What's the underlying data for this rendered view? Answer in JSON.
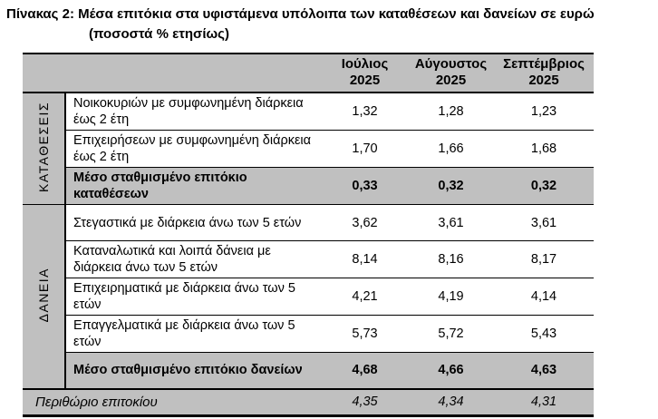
{
  "title": {
    "line1": "Πίνακας 2: Μέσα επιτόκια στα υφιστάμενα υπόλοιπα των καταθέσεων και δανείων σε ευρώ",
    "line2": "(ποσοστά % ετησίως)"
  },
  "colors": {
    "header_bg": "#c0c0c0",
    "highlight_bg": "#c0c0c0",
    "border": "#000000",
    "text": "#000000"
  },
  "table": {
    "columns": [
      "Ιούλιος\n2025",
      "Αύγουστος\n2025",
      "Σεπτέμβριος\n2025"
    ],
    "sections": [
      {
        "label": "ΚΑΤΑΘΕΣΕΙΣ",
        "rows": [
          {
            "label": "Νοικοκυριών με συμφωνημένη διάρκεια έως 2 έτη",
            "values": [
              "1,32",
              "1,28",
              "1,23"
            ]
          },
          {
            "label": "Επιχειρήσεων με συμφωνημένη διάρκεια έως 2 έτη",
            "values": [
              "1,70",
              "1,66",
              "1,68"
            ]
          },
          {
            "label": "Μέσο σταθμισμένο επιτόκιο καταθέσεων",
            "values": [
              "0,33",
              "0,32",
              "0,32"
            ]
          }
        ]
      },
      {
        "label": "ΔΑΝΕΙΑ",
        "rows": [
          {
            "label": "Στεγαστικά με διάρκεια άνω των 5 ετών",
            "values": [
              "3,62",
              "3,61",
              "3,61"
            ]
          },
          {
            "label": "Καταναλωτικά και λοιπά δάνεια με διάρκεια άνω των 5 ετών",
            "values": [
              "8,14",
              "8,16",
              "8,17"
            ]
          },
          {
            "label": "Επιχειρηματικά με διάρκεια άνω των 5 ετών",
            "values": [
              "4,21",
              "4,19",
              "4,14"
            ]
          },
          {
            "label": "Επαγγελματικά με διάρκεια άνω των 5 ετών",
            "values": [
              "5,73",
              "5,72",
              "5,43"
            ]
          },
          {
            "label": "Μέσο σταθμισμένο επιτόκιο δανείων",
            "values": [
              "4,68",
              "4,66",
              "4,63"
            ]
          }
        ]
      }
    ],
    "footer": {
      "label": "Περιθώριο επιτοκίου",
      "values": [
        "4,35",
        "4,34",
        "4,31"
      ]
    }
  }
}
